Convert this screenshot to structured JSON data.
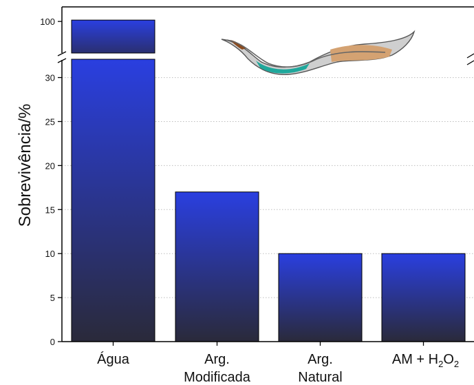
{
  "chart_data": {
    "type": "bar",
    "ylabel": "Sobrevivência/%",
    "categories": [
      {
        "lines": [
          "Água"
        ]
      },
      {
        "lines": [
          "Arg.",
          "Modificada"
        ]
      },
      {
        "lines": [
          "Arg.",
          "Natural"
        ]
      },
      {
        "lines": [
          "AM + H",
          "2",
          "O",
          "2"
        ],
        "subscript_formula": true
      }
    ],
    "values": [
      100,
      17,
      10,
      10
    ],
    "y_axis_break": {
      "from": 32,
      "to": 95
    },
    "lower_ylim": [
      0,
      32
    ],
    "lower_ticks": [
      0,
      5,
      10,
      15,
      20,
      25,
      30
    ],
    "upper_ticks": [
      100
    ],
    "grid": "horizontal dotted",
    "colors": {
      "bar_top": "#2a3fe0",
      "bar_bottom": "#2a2a3a",
      "axis": "#000000",
      "grid": "#bdbdbd"
    },
    "annotations": [
      {
        "type": "illustration",
        "icon": "nematode-worm"
      }
    ]
  }
}
